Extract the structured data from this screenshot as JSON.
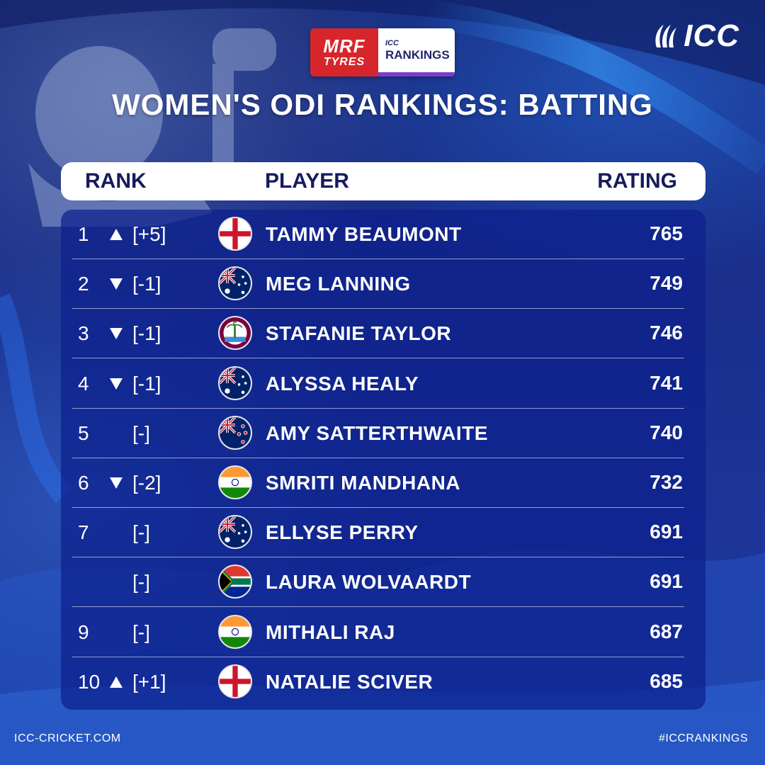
{
  "sponsor": {
    "brand_line1": "MRF",
    "brand_line2": "TYRES",
    "icc_small": "ICC",
    "icc_big": "RANKINGS"
  },
  "logo": {
    "text": "ICC",
    "icon": "icc-swoosh-icon"
  },
  "title": "WOMEN'S ODI RANKINGS: BATTING",
  "header": {
    "rank": "RANK",
    "player": "PLAYER",
    "rating": "RATING"
  },
  "colors": {
    "background": "#1a2f8c",
    "panel": "#0c208c",
    "header_text": "#161b5e"
  },
  "rows": [
    {
      "rank": "1",
      "trend": "up",
      "change": "[+5]",
      "flag": "england",
      "player": "TAMMY BEAUMONT",
      "rating": "765"
    },
    {
      "rank": "2",
      "trend": "down",
      "change": "[-1]",
      "flag": "australia",
      "player": "MEG LANNING",
      "rating": "749"
    },
    {
      "rank": "3",
      "trend": "down",
      "change": "[-1]",
      "flag": "west-indies",
      "player": "STAFANIE TAYLOR",
      "rating": "746"
    },
    {
      "rank": "4",
      "trend": "down",
      "change": "[-1]",
      "flag": "australia",
      "player": "ALYSSA HEALY",
      "rating": "741"
    },
    {
      "rank": "5",
      "trend": "none",
      "change": "[-]",
      "flag": "new-zealand",
      "player": "AMY SATTERTHWAITE",
      "rating": "740"
    },
    {
      "rank": "6",
      "trend": "down",
      "change": "[-2]",
      "flag": "india",
      "player": "SMRITI MANDHANA",
      "rating": "732"
    },
    {
      "rank": "7",
      "trend": "none",
      "change": "[-]",
      "flag": "australia",
      "player": "ELLYSE PERRY",
      "rating": "691"
    },
    {
      "rank": "",
      "trend": "none",
      "change": "[-]",
      "flag": "south-africa",
      "player": "LAURA WOLVAARDT",
      "rating": "691"
    },
    {
      "rank": "9",
      "trend": "none",
      "change": "[-]",
      "flag": "india",
      "player": "MITHALI RAJ",
      "rating": "687"
    },
    {
      "rank": "10",
      "trend": "up",
      "change": "[+1]",
      "flag": "england",
      "player": "NATALIE SCIVER",
      "rating": "685"
    }
  ],
  "footer": {
    "left": "ICC-CRICKET.COM",
    "right": "#ICCRANKINGS"
  }
}
